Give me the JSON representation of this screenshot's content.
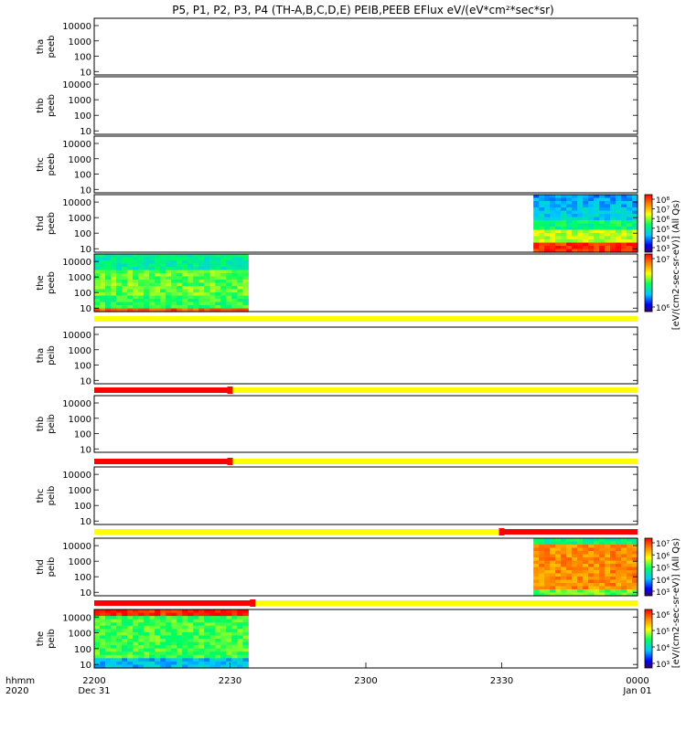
{
  "chart_data": {
    "type": "heatmap",
    "title": "P5, P1, P2, P3, P4 (TH-A,B,C,D,E) PEIB,PEEB EFlux eV/(eV*cm²*sec*sr)",
    "x_label_row1": "hhmm",
    "x_label_row2": "2020",
    "x_ticks": [
      "2200",
      "2230",
      "2300",
      "2330",
      "0000"
    ],
    "x_date_labels": [
      {
        "at": "2200",
        "text": "Dec 31"
      },
      {
        "at": "0000",
        "text": "Jan 01"
      }
    ],
    "xlim": [
      "2020-12-31 22:00",
      "2021-01-01 00:00"
    ],
    "y_scale": "log",
    "y_ticks": [
      "10",
      "100",
      "1000",
      "10000"
    ],
    "panels": [
      {
        "label1": "tha",
        "label2": "peeb",
        "data": "none"
      },
      {
        "label1": "thb",
        "label2": "peeb",
        "data": "none"
      },
      {
        "label1": "thc",
        "label2": "peeb",
        "data": "none"
      },
      {
        "label1": "thd",
        "label2": "peeb",
        "data": "spectrogram",
        "data_start": "23:37",
        "data_end": "00:00",
        "colorbar": {
          "label": "[eV/(cm2-sec-sr-eV)] (All Qs)",
          "ticks": [
            "10³",
            "10⁴",
            "10⁵",
            "10⁶",
            "10⁷",
            "10⁸"
          ]
        }
      },
      {
        "label1": "the",
        "label2": "peeb",
        "data": "spectrogram",
        "data_start": "22:00",
        "data_end": "22:34",
        "colorbar": {
          "label": "[eV/(cm2-sec-sr-eV)] (All Qs)",
          "ticks": [
            "10⁶",
            "10⁷"
          ]
        }
      },
      {
        "label1": "tha",
        "label2": "peib",
        "data": "none"
      },
      {
        "label1": "thb",
        "label2": "peib",
        "data": "none"
      },
      {
        "label1": "thc",
        "label2": "peib",
        "data": "none"
      },
      {
        "label1": "thd",
        "label2": "peib",
        "data": "spectrogram",
        "data_start": "23:37",
        "data_end": "00:00",
        "colorbar": {
          "label": "[eV/(cm2-sec-sr-eV)] (All Qs)",
          "ticks": [
            "10³",
            "10⁴",
            "10⁵",
            "10⁶",
            "10⁷"
          ]
        }
      },
      {
        "label1": "the",
        "label2": "peib",
        "data": "spectrogram",
        "data_start": "22:00",
        "data_end": "22:34",
        "colorbar": {
          "label": "[eV/(cm2-sec-sr-eV)] (All Qs)",
          "ticks": [
            "10³",
            "10⁴",
            "10⁵",
            "10⁶"
          ]
        }
      }
    ],
    "mode_bars": [
      {
        "segments": [
          {
            "start": "22:00",
            "end": "00:00",
            "color": "#ffff00"
          }
        ]
      },
      {
        "segments": [
          {
            "start": "22:00",
            "end": "22:30",
            "color": "#ff0000"
          },
          {
            "start": "22:30",
            "end": "00:00",
            "color": "#ffff00"
          }
        ]
      },
      {
        "segments": [
          {
            "start": "22:00",
            "end": "22:30",
            "color": "#ff0000"
          },
          {
            "start": "22:30",
            "end": "00:00",
            "color": "#ffff00"
          }
        ]
      },
      {
        "segments": [
          {
            "start": "22:00",
            "end": "23:30",
            "color": "#ffff00"
          },
          {
            "start": "23:30",
            "end": "00:00",
            "color": "#ff0000"
          }
        ]
      },
      {
        "segments": [
          {
            "start": "22:00",
            "end": "22:35",
            "color": "#ff0000"
          },
          {
            "start": "22:35",
            "end": "00:00",
            "color": "#ffff00"
          }
        ]
      }
    ],
    "legend_placement": "right",
    "grid": false
  }
}
